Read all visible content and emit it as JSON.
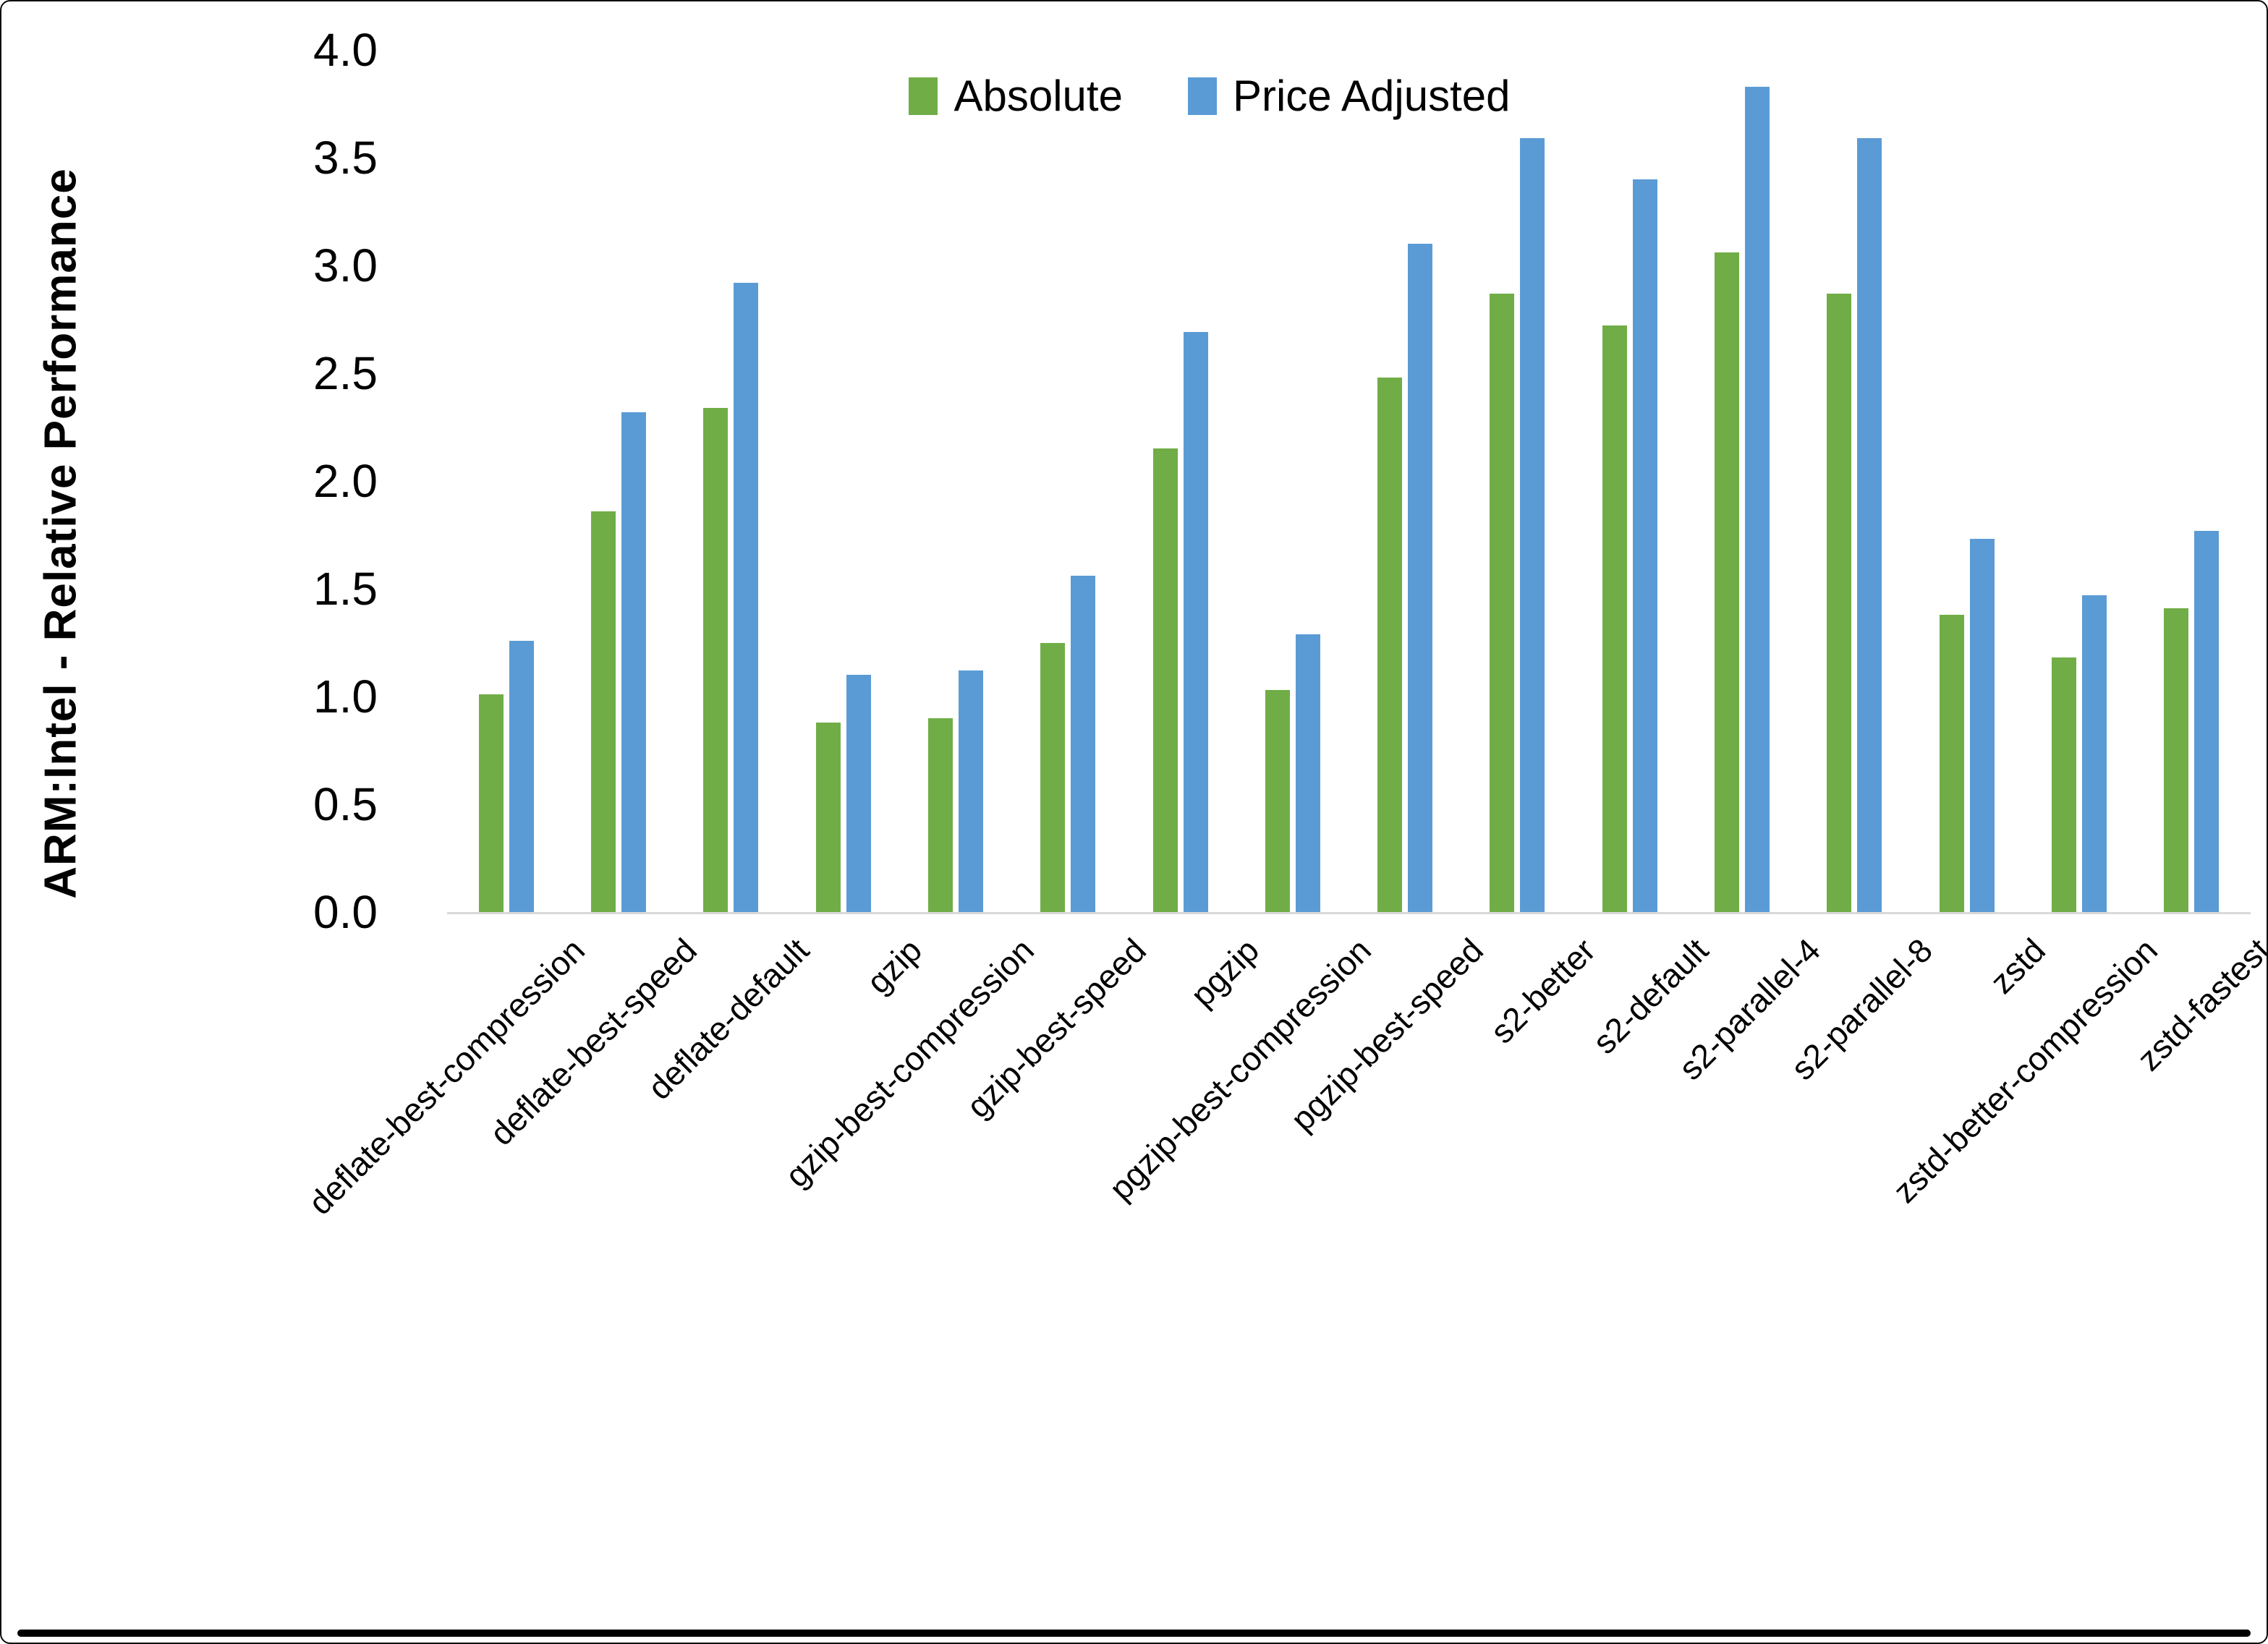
{
  "colors": {
    "absolute": "#70AD47",
    "price_adjusted": "#5B9BD5",
    "axis_line": "#D9D9D9",
    "text": "#000000",
    "frame": "#000000"
  },
  "legend": {
    "absolute_label": "Absolute",
    "price_adjusted_label": "Price Adjusted"
  },
  "chart_data": {
    "type": "bar",
    "title": "",
    "xlabel": "",
    "ylabel": "ARM:Intel - Relative Performance",
    "ylim": [
      0.0,
      4.0
    ],
    "ytick_step": 0.5,
    "ytick_labels": [
      "0.0",
      "0.5",
      "1.0",
      "1.5",
      "2.0",
      "2.5",
      "3.0",
      "3.5",
      "4.0"
    ],
    "grid": false,
    "legend_position": "top-center",
    "categories": [
      "deflate-best-compression",
      "deflate-best-speed",
      "deflate-default",
      "gzip",
      "gzip-best-compression",
      "gzip-best-speed",
      "pgzip",
      "pgzip-best-compression",
      "pgzip-best-speed",
      "s2-better",
      "s2-default",
      "s2-parallel-4",
      "s2-parallel-8",
      "zstd",
      "zstd-better-compression",
      "zstd-fastest"
    ],
    "series": [
      {
        "name": "Absolute",
        "color": "#70AD47",
        "values": [
          1.01,
          1.86,
          2.34,
          0.88,
          0.9,
          1.25,
          2.15,
          1.03,
          2.48,
          2.87,
          2.72,
          3.06,
          2.87,
          1.38,
          1.18,
          1.41
        ]
      },
      {
        "name": "Price Adjusted",
        "color": "#5B9BD5",
        "values": [
          1.26,
          2.32,
          2.92,
          1.1,
          1.12,
          1.56,
          2.69,
          1.29,
          3.1,
          3.59,
          3.4,
          3.83,
          3.59,
          1.73,
          1.47,
          1.77
        ]
      }
    ]
  }
}
